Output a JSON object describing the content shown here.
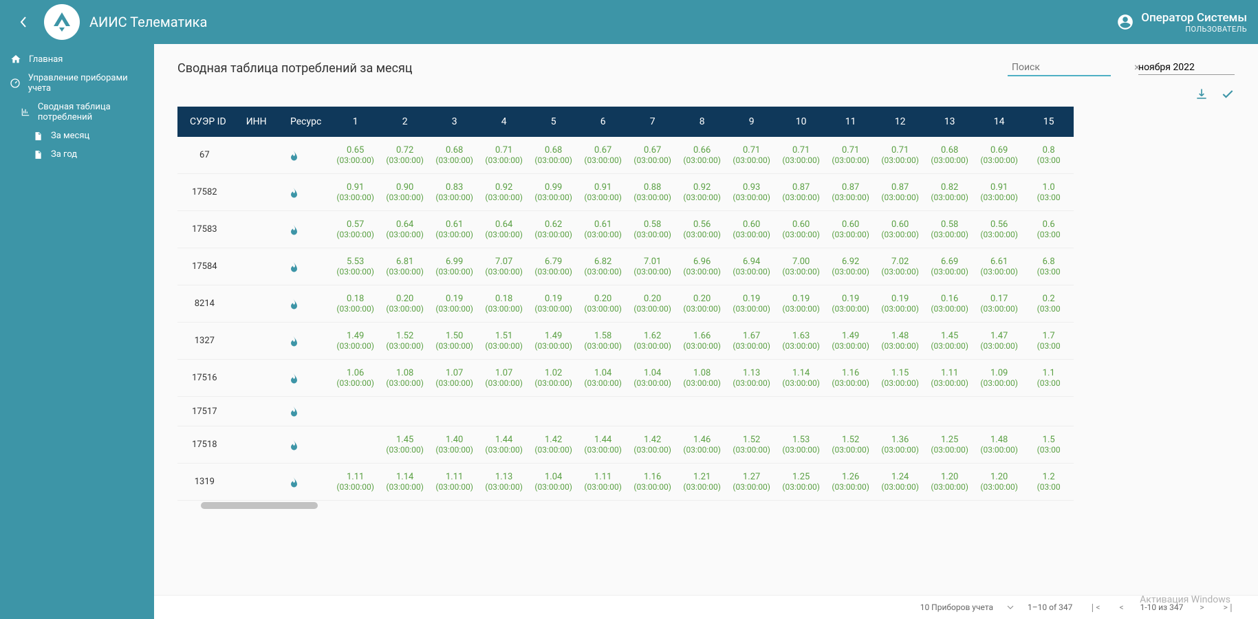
{
  "header": {
    "app_title": "АИИС Телематика",
    "user_name": "Оператор Системы",
    "user_role": "ПОЛЬЗОВАТЕЛЬ"
  },
  "sidebar": {
    "items": [
      {
        "label": "Главная",
        "icon": "home"
      },
      {
        "label": "Управление приборами учета",
        "icon": "gauge"
      },
      {
        "label": "Сводная таблица потреблений",
        "icon": "chart",
        "child": true
      },
      {
        "label": "За месяц",
        "icon": "doc",
        "grandchild": true
      },
      {
        "label": "За год",
        "icon": "doc",
        "grandchild": true
      }
    ]
  },
  "page": {
    "title": "Сводная таблица потреблений за месяц",
    "search_placeholder": "Поиск",
    "date_value": "ноября 2022"
  },
  "table": {
    "columns": [
      "СУЭР ID",
      "ИНН",
      "Ресурс",
      "1",
      "2",
      "3",
      "4",
      "5",
      "6",
      "7",
      "8",
      "9",
      "10",
      "11",
      "12",
      "13",
      "14",
      "15"
    ],
    "time": "(03:00:00)",
    "time_last_col": "(03:00",
    "rows": [
      {
        "id": "67",
        "inn": "",
        "vals": [
          "0.65",
          "0.72",
          "0.68",
          "0.71",
          "0.68",
          "0.67",
          "0.67",
          "0.66",
          "0.71",
          "0.71",
          "0.71",
          "0.71",
          "0.68",
          "0.69",
          "0.8"
        ]
      },
      {
        "id": "17582",
        "inn": "",
        "vals": [
          "0.91",
          "0.90",
          "0.83",
          "0.92",
          "0.99",
          "0.91",
          "0.88",
          "0.92",
          "0.93",
          "0.87",
          "0.87",
          "0.87",
          "0.82",
          "0.91",
          "1.0"
        ]
      },
      {
        "id": "17583",
        "inn": "",
        "vals": [
          "0.57",
          "0.64",
          "0.61",
          "0.64",
          "0.62",
          "0.61",
          "0.58",
          "0.56",
          "0.60",
          "0.60",
          "0.60",
          "0.60",
          "0.58",
          "0.56",
          "0.6"
        ]
      },
      {
        "id": "17584",
        "inn": "",
        "vals": [
          "5.53",
          "6.81",
          "6.99",
          "7.07",
          "6.79",
          "6.82",
          "7.01",
          "6.96",
          "6.94",
          "7.00",
          "6.92",
          "7.02",
          "6.69",
          "6.61",
          "6.8"
        ]
      },
      {
        "id": "8214",
        "inn": "",
        "vals": [
          "0.18",
          "0.20",
          "0.19",
          "0.18",
          "0.19",
          "0.20",
          "0.20",
          "0.20",
          "0.19",
          "0.19",
          "0.19",
          "0.19",
          "0.16",
          "0.17",
          "0.2"
        ]
      },
      {
        "id": "1327",
        "inn": "",
        "vals": [
          "1.49",
          "1.52",
          "1.50",
          "1.51",
          "1.49",
          "1.58",
          "1.62",
          "1.66",
          "1.67",
          "1.63",
          "1.49",
          "1.48",
          "1.45",
          "1.47",
          "1.7"
        ]
      },
      {
        "id": "17516",
        "inn": "",
        "vals": [
          "1.06",
          "1.08",
          "1.07",
          "1.07",
          "1.02",
          "1.04",
          "1.04",
          "1.08",
          "1.13",
          "1.14",
          "1.16",
          "1.15",
          "1.11",
          "1.09",
          "1.1"
        ]
      },
      {
        "id": "17517",
        "inn": "",
        "vals": []
      },
      {
        "id": "17518",
        "inn": "",
        "vals": [
          "",
          "1.45",
          "1.40",
          "1.44",
          "1.42",
          "1.44",
          "1.42",
          "1.46",
          "1.52",
          "1.53",
          "1.52",
          "1.36",
          "1.25",
          "1.48",
          "1.5"
        ]
      },
      {
        "id": "1319",
        "inn": "",
        "vals": [
          "1.11",
          "1.14",
          "1.11",
          "1.13",
          "1.04",
          "1.11",
          "1.16",
          "1.21",
          "1.27",
          "1.25",
          "1.26",
          "1.24",
          "1.20",
          "1.20",
          "1.2"
        ]
      }
    ]
  },
  "footer": {
    "page_size_label": "10 Приборов учета",
    "range_label": "1–10 of 347",
    "range_label2": "1-10 из 347"
  },
  "overlay": {
    "line1": "Активация Windows"
  },
  "colors": {
    "primary": "#3d95a7",
    "header_dark": "#0f385a",
    "value_green": "#5aa043"
  }
}
